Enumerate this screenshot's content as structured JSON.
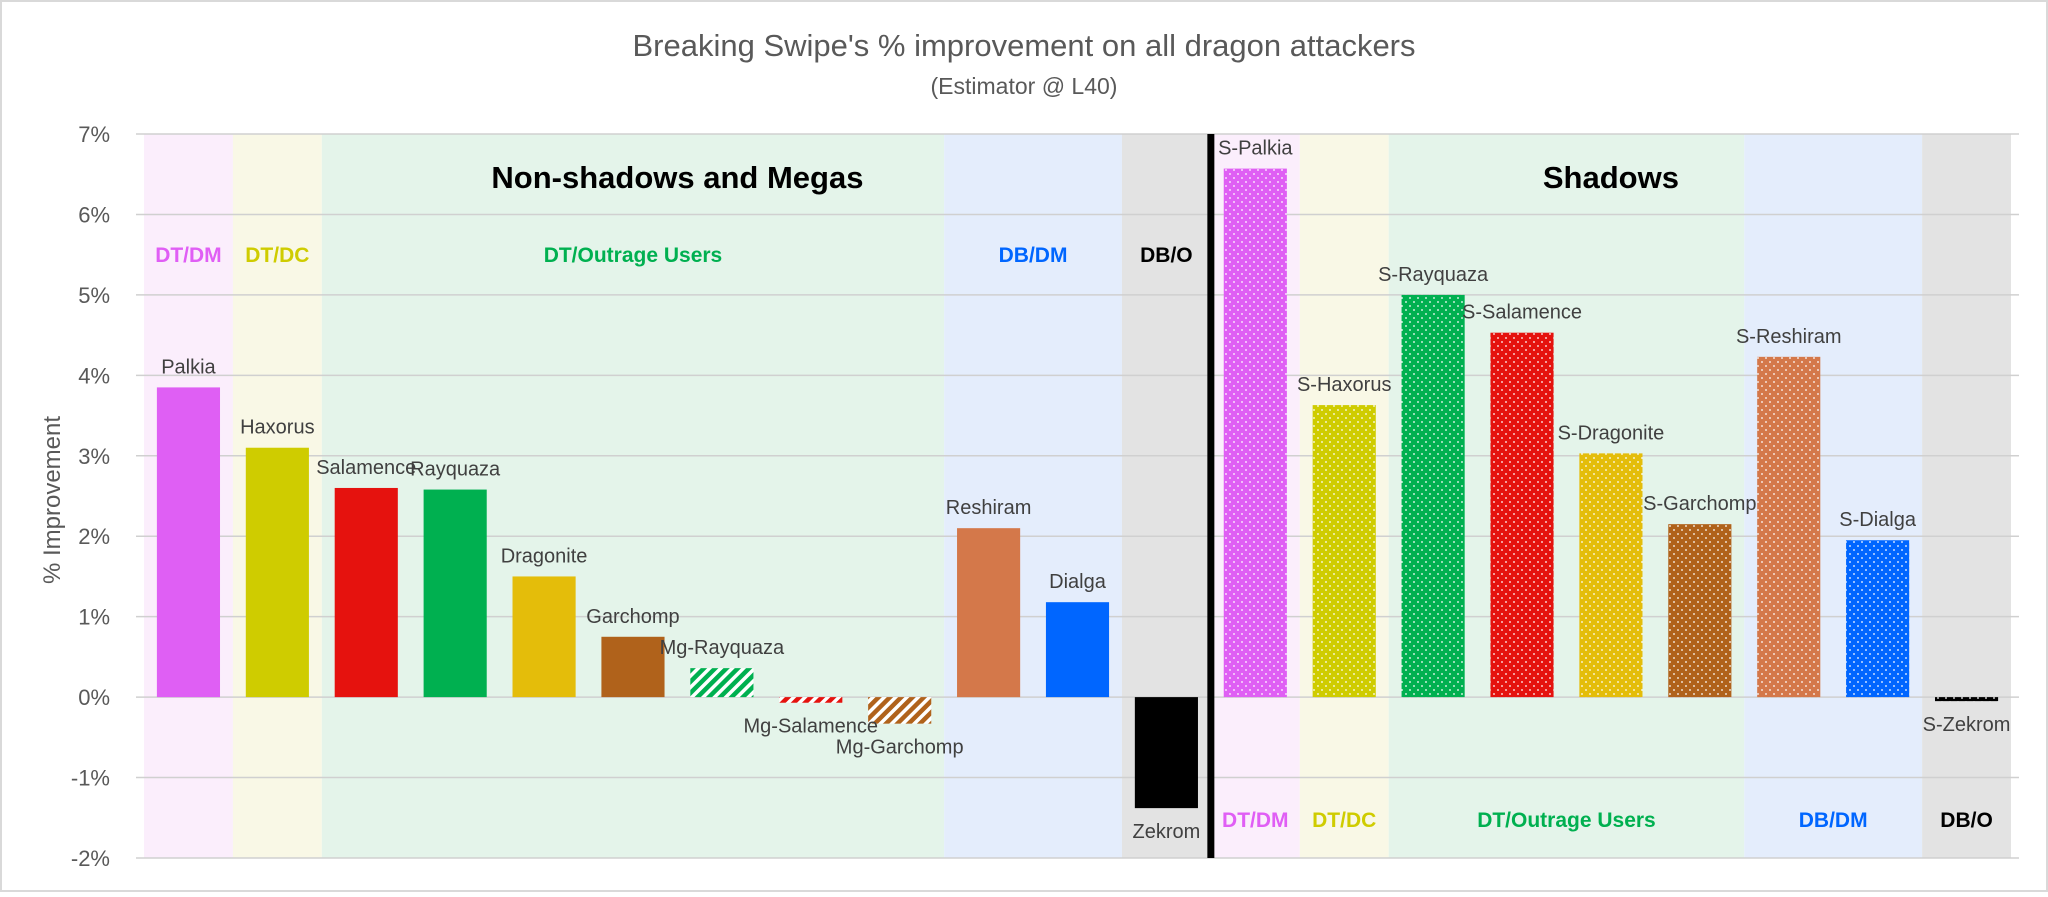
{
  "chart_data": {
    "type": "bar",
    "title": "Breaking Swipe's % improvement on all dragon attackers",
    "subtitle": "(Estimator @ L40)",
    "xlabel": "",
    "ylabel": "% Improvement",
    "ylim": [
      -2,
      7
    ],
    "yticks": [
      "-2%",
      "-1%",
      "0%",
      "1%",
      "2%",
      "3%",
      "4%",
      "5%",
      "6%",
      "7%"
    ],
    "grid": true,
    "sections": [
      {
        "title": "Non-shadows and Megas",
        "first": 0,
        "last": 11
      },
      {
        "title": "Shadows",
        "first": 12,
        "last": 20
      }
    ],
    "groups": [
      {
        "label": "DT/DM",
        "first": 0,
        "last": 0,
        "text_color": "#e05ef5",
        "band_color": "#fbeefc",
        "label_position": "top"
      },
      {
        "label": "DT/DC",
        "first": 1,
        "last": 1,
        "text_color": "#cfcc00",
        "band_color": "#f9f8e6",
        "label_position": "top"
      },
      {
        "label": "DT/Outrage Users",
        "first": 2,
        "last": 8,
        "text_color": "#00b050",
        "band_color": "#e4f4ea",
        "label_position": "top"
      },
      {
        "label": "DB/DM",
        "first": 9,
        "last": 10,
        "text_color": "#0066ff",
        "band_color": "#e4edfc",
        "label_position": "top"
      },
      {
        "label": "DB/O",
        "first": 11,
        "last": 11,
        "text_color": "#000000",
        "band_color": "#e3e3e3",
        "label_position": "top"
      },
      {
        "label": "DT/DM",
        "first": 12,
        "last": 12,
        "text_color": "#e05ef5",
        "band_color": "#fbeefc",
        "label_position": "bottom"
      },
      {
        "label": "DT/DC",
        "first": 13,
        "last": 13,
        "text_color": "#cfcc00",
        "band_color": "#f9f8e6",
        "label_position": "bottom"
      },
      {
        "label": "DT/Outrage Users",
        "first": 14,
        "last": 17,
        "text_color": "#00b050",
        "band_color": "#e4f4ea",
        "label_position": "bottom"
      },
      {
        "label": "DB/DM",
        "first": 18,
        "last": 19,
        "text_color": "#0066ff",
        "band_color": "#e4edfc",
        "label_position": "bottom"
      },
      {
        "label": "DB/O",
        "first": 20,
        "last": 20,
        "text_color": "#000000",
        "band_color": "#e3e3e3",
        "label_position": "bottom"
      }
    ],
    "categories": [
      "Palkia",
      "Haxorus",
      "Salamence",
      "Rayquaza",
      "Dragonite",
      "Garchomp",
      "Mg-Rayquaza",
      "Mg-Salamence",
      "Mg-Garchomp",
      "Reshiram",
      "Dialga",
      "Zekrom",
      "S-Palkia",
      "S-Haxorus",
      "S-Rayquaza",
      "S-Salamence",
      "S-Dragonite",
      "S-Garchomp",
      "S-Reshiram",
      "S-Dialga",
      "S-Zekrom"
    ],
    "values": [
      3.85,
      3.1,
      2.6,
      2.58,
      1.5,
      0.75,
      0.36,
      -0.07,
      -0.33,
      2.1,
      1.18,
      -1.38,
      6.57,
      3.63,
      5.0,
      4.53,
      3.03,
      2.15,
      4.23,
      1.95,
      -0.05
    ],
    "colors": [
      "#df5ff4",
      "#cfcc00",
      "#e5120e",
      "#00b050",
      "#e4bd0a",
      "#b0621b",
      "#00b050",
      "#e5120e",
      "#b0621b",
      "#d4784a",
      "#0066ff",
      "#000000",
      "#df5ff4",
      "#cfcc00",
      "#00b050",
      "#e5120e",
      "#e4bd0a",
      "#b0621b",
      "#d4784a",
      "#0066ff",
      "#000000"
    ],
    "fill_styles": [
      "solid",
      "solid",
      "solid",
      "solid",
      "solid",
      "solid",
      "hatched",
      "hatched",
      "hatched",
      "solid",
      "solid",
      "solid",
      "dotted",
      "dotted",
      "dotted",
      "dotted",
      "dotted",
      "dotted",
      "dotted",
      "dotted",
      "dotted"
    ]
  }
}
